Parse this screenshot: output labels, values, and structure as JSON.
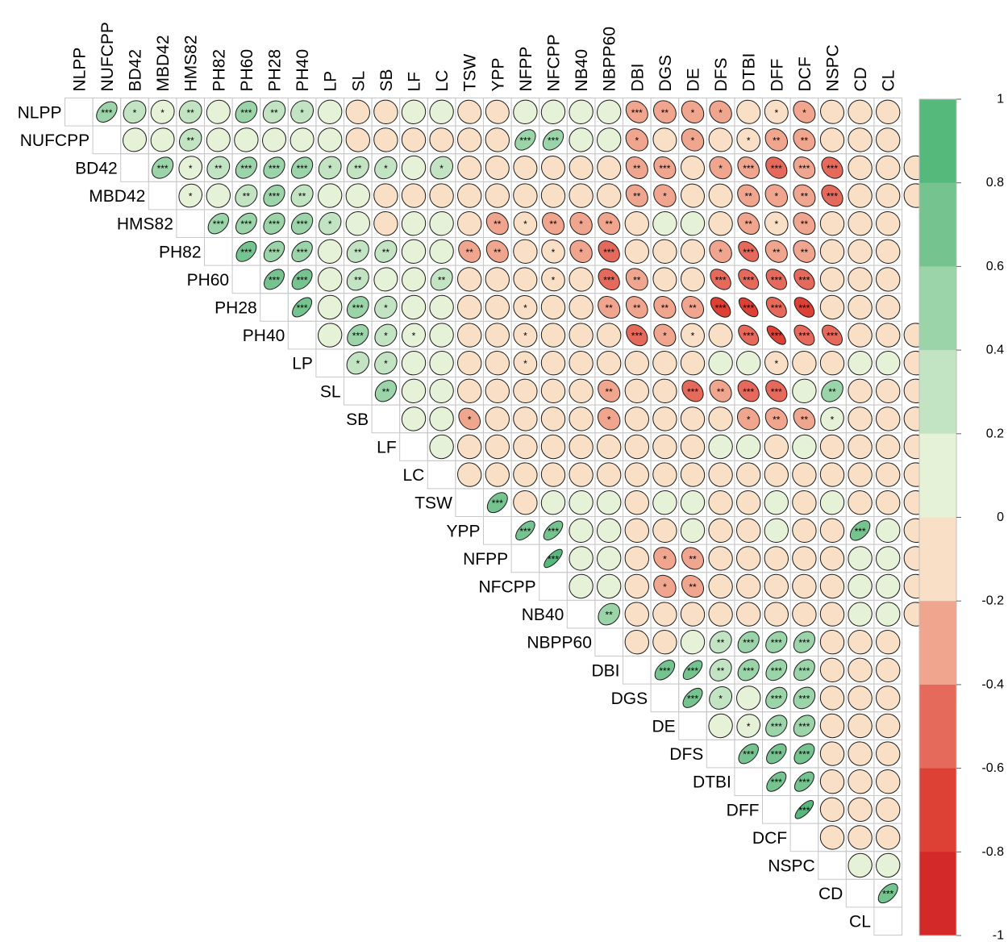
{
  "chart_data": {
    "type": "heatmap",
    "style": "upper-triangle correlogram, ellipse glyphs",
    "variables": [
      "NLPP",
      "NUFCPP",
      "BD42",
      "MBD42",
      "HMS82",
      "PH82",
      "PH60",
      "PH28",
      "PH40",
      "LP",
      "SL",
      "SB",
      "LF",
      "LC",
      "TSW",
      "YPP",
      "NFPP",
      "NFCPP",
      "NB40",
      "NBPP60",
      "DBI",
      "DGS",
      "DE",
      "DFS",
      "DTBI",
      "DFF",
      "DCF",
      "NSPC",
      "CD",
      "CL"
    ],
    "legend": {
      "min": -1,
      "max": 1,
      "ticks": [
        "1",
        "0.8",
        "0.6",
        "0.4",
        "0.2",
        "0",
        "-0.2",
        "-0.4",
        "-0.6",
        "-0.8",
        "-1"
      ],
      "bins": [
        {
          "from": 0.8,
          "to": 1.0,
          "color": "#55b97c"
        },
        {
          "from": 0.6,
          "to": 0.8,
          "color": "#75c48f"
        },
        {
          "from": 0.4,
          "to": 0.6,
          "color": "#9cd4a9"
        },
        {
          "from": 0.2,
          "to": 0.4,
          "color": "#c3e4c3"
        },
        {
          "from": 0.0,
          "to": 0.2,
          "color": "#e6f2d7"
        },
        {
          "from": -0.2,
          "to": 0.0,
          "color": "#f9dfc6"
        },
        {
          "from": -0.4,
          "to": -0.2,
          "color": "#f0a58f"
        },
        {
          "from": -0.6,
          "to": -0.4,
          "color": "#e66a5c"
        },
        {
          "from": -0.8,
          "to": -0.6,
          "color": "#dd4034"
        },
        {
          "from": -1.0,
          "to": -0.8,
          "color": "#d32a29"
        }
      ]
    },
    "cells": [
      {
        "row": "NLPP",
        "values": [
          0.55,
          0.25,
          0.1,
          0.25,
          0.1,
          0.4,
          0.3,
          0.25,
          0.05,
          -0.05,
          -0.05,
          0.05,
          0.05,
          -0.1,
          -0.1,
          0.05,
          0.05,
          0.05,
          0.05,
          -0.35,
          -0.25,
          -0.3,
          -0.3,
          -0.1,
          -0.1,
          -0.35,
          -0.1,
          -0.05,
          -0.05
        ],
        "stars": [
          "***",
          "*",
          "*",
          "**",
          "",
          "***",
          "**",
          "*",
          "",
          "",
          "",
          "",
          "",
          "",
          "",
          "",
          "",
          "",
          "",
          "***",
          "**",
          "*",
          "*",
          "",
          "*",
          "*",
          "",
          "",
          ""
        ]
      },
      {
        "row": "NUFCPP",
        "values": [
          0.1,
          0.1,
          0.3,
          0.1,
          0.05,
          0.1,
          0.1,
          0.05,
          -0.05,
          -0.05,
          -0.05,
          -0.05,
          -0.05,
          -0.05,
          0.55,
          0.55,
          0.05,
          0.05,
          -0.3,
          -0.1,
          -0.3,
          -0.1,
          -0.15,
          -0.3,
          -0.35,
          -0.05,
          -0.05,
          -0.05
        ],
        "stars": [
          "",
          "",
          "**",
          "",
          "",
          "",
          "",
          "",
          "",
          "",
          "",
          "",
          "",
          "",
          "***",
          "***",
          "",
          "",
          "*",
          "",
          "*",
          "",
          "*",
          "**",
          "**",
          "",
          "",
          ""
        ]
      },
      {
        "row": "BD42",
        "values": [
          0.45,
          0.15,
          0.25,
          0.45,
          0.45,
          0.45,
          0.25,
          0.35,
          0.3,
          0.05,
          0.25,
          -0.1,
          -0.1,
          -0.1,
          -0.1,
          -0.1,
          -0.1,
          -0.35,
          -0.35,
          -0.1,
          -0.3,
          -0.4,
          -0.45,
          -0.4,
          -0.45,
          -0.05,
          -0.05,
          -0.05
        ],
        "stars": [
          "***",
          "*",
          "**",
          "***",
          "***",
          "***",
          "*",
          "**",
          "*",
          "",
          "*",
          "",
          "",
          "",
          "",
          "",
          "",
          "**",
          "***",
          "",
          "*",
          "***",
          "***",
          "***",
          "***",
          "",
          "",
          ""
        ]
      },
      {
        "row": "MBD42",
        "values": [
          0.15,
          0.05,
          0.35,
          0.45,
          0.35,
          0.05,
          0.05,
          -0.05,
          -0.05,
          -0.05,
          -0.05,
          -0.05,
          -0.05,
          -0.05,
          -0.05,
          -0.05,
          -0.35,
          -0.3,
          -0.1,
          -0.1,
          -0.35,
          -0.3,
          -0.35,
          -0.45,
          -0.05,
          -0.05,
          -0.05
        ],
        "stars": [
          "*",
          "",
          "**",
          "***",
          "**",
          "",
          "",
          "",
          "",
          "",
          "",
          "",
          "",
          "",
          "",
          "",
          "**",
          "*",
          "",
          "",
          "**",
          "*",
          "**",
          "***",
          "",
          "",
          ""
        ]
      },
      {
        "row": "HMS82",
        "values": [
          0.55,
          0.5,
          0.45,
          0.45,
          0.3,
          0.05,
          -0.05,
          0.05,
          0.05,
          -0.05,
          -0.35,
          -0.15,
          -0.35,
          -0.3,
          -0.35,
          -0.05,
          0.05,
          0.05,
          -0.05,
          -0.4,
          -0.15,
          -0.35,
          -0.05,
          -0.05,
          -0.05
        ],
        "stars": [
          "***",
          "***",
          "***",
          "***",
          "*",
          "",
          "",
          "",
          "",
          "",
          "**",
          "*",
          "**",
          "*",
          "**",
          "",
          "",
          "",
          "",
          "**",
          "*",
          "**",
          "",
          "",
          ""
        ]
      },
      {
        "row": "PH82",
        "values": [
          0.6,
          0.55,
          0.55,
          0.05,
          0.35,
          0.35,
          0.05,
          0.05,
          -0.35,
          -0.35,
          -0.05,
          -0.15,
          -0.3,
          -0.45,
          -0.05,
          -0.05,
          -0.05,
          -0.3,
          -0.6,
          -0.35,
          -0.35,
          -0.05,
          -0.05,
          -0.05
        ],
        "stars": [
          "***",
          "***",
          "***",
          "",
          "**",
          "**",
          "",
          "",
          "**",
          "**",
          "",
          "*",
          "*",
          "***",
          "",
          "",
          "",
          "*",
          "***",
          "**",
          "**",
          "",
          "",
          ""
        ]
      },
      {
        "row": "PH60",
        "values": [
          0.6,
          0.6,
          0.05,
          0.35,
          0.1,
          0.1,
          0.35,
          -0.05,
          -0.05,
          -0.1,
          -0.15,
          -0.05,
          -0.45,
          -0.35,
          -0.1,
          -0.1,
          -0.55,
          -0.6,
          -0.55,
          -0.55,
          -0.05,
          -0.05,
          -0.05
        ],
        "stars": [
          "***",
          "***",
          "",
          "**",
          "",
          "",
          "**",
          "",
          "",
          "",
          "*",
          "",
          "***",
          "**",
          "",
          "",
          "***",
          "***",
          "***",
          "***",
          "",
          "",
          ""
        ]
      },
      {
        "row": "PH28",
        "values": [
          0.7,
          0.05,
          0.4,
          0.3,
          0.05,
          0.05,
          -0.05,
          -0.05,
          -0.1,
          -0.05,
          -0.05,
          -0.35,
          -0.4,
          -0.35,
          -0.35,
          -0.65,
          -0.75,
          -0.6,
          -0.65,
          -0.05,
          -0.05,
          -0.05
        ],
        "stars": [
          "***",
          "",
          "***",
          "*",
          "",
          "",
          "",
          "",
          "*",
          "",
          "",
          "**",
          "**",
          "**",
          "**",
          "***",
          "***",
          "***",
          "***",
          "",
          "",
          ""
        ]
      },
      {
        "row": "PH40",
        "values": [
          0.05,
          0.45,
          0.35,
          0.1,
          0.05,
          -0.05,
          -0.05,
          -0.1,
          -0.05,
          -0.05,
          -0.05,
          -0.45,
          -0.35,
          -0.1,
          -0.1,
          -0.6,
          -0.8,
          -0.6,
          -0.6,
          -0.05,
          -0.05,
          -0.05
        ],
        "stars": [
          "",
          "***",
          "*",
          "*",
          "",
          "",
          "",
          "*",
          "",
          "",
          "",
          "***",
          "*",
          "*",
          "",
          "***",
          "***",
          "***",
          "***",
          "",
          "",
          ""
        ]
      },
      {
        "row": "LP",
        "values": [
          0.3,
          0.3,
          0.05,
          0.05,
          -0.05,
          -0.05,
          -0.15,
          -0.05,
          -0.05,
          -0.05,
          -0.05,
          -0.05,
          -0.05,
          0.05,
          0.05,
          -0.15,
          -0.05,
          -0.05,
          0.05,
          0.05,
          -0.05
        ],
        "stars": [
          "*",
          "*",
          "",
          "",
          "",
          "",
          "*",
          "",
          "",
          "",
          "",
          "",
          "",
          "",
          "",
          "*",
          "",
          "",
          "",
          "",
          ""
        ]
      },
      {
        "row": "SL",
        "values": [
          0.45,
          0.05,
          0.05,
          -0.05,
          -0.05,
          -0.05,
          -0.05,
          -0.05,
          -0.35,
          -0.05,
          -0.05,
          -0.45,
          -0.35,
          -0.45,
          -0.45,
          0.05,
          0.4,
          -0.05,
          -0.05,
          -0.05
        ],
        "stars": [
          "**",
          "",
          "",
          "",
          "",
          "",
          "",
          "",
          "**",
          "",
          "",
          "***",
          "**",
          "***",
          "***",
          "",
          "**",
          "",
          "",
          ""
        ]
      },
      {
        "row": "SB",
        "values": [
          0.05,
          0.05,
          -0.4,
          -0.05,
          -0.05,
          -0.05,
          -0.05,
          -0.3,
          -0.05,
          -0.05,
          -0.05,
          -0.05,
          -0.3,
          -0.35,
          -0.4,
          0.15,
          -0.05,
          -0.05,
          -0.05
        ],
        "stars": [
          "",
          "",
          "*",
          "",
          "",
          "",
          "",
          "*",
          "",
          "",
          "",
          "",
          "*",
          "**",
          "**",
          "*",
          "",
          "",
          ""
        ]
      },
      {
        "row": "LF",
        "values": [
          0.05,
          -0.05,
          -0.05,
          -0.05,
          -0.05,
          -0.05,
          -0.05,
          -0.05,
          -0.05,
          -0.05,
          0.05,
          0.05,
          -0.05,
          0.05,
          -0.05,
          -0.05,
          -0.05,
          -0.05
        ]
      },
      {
        "row": "LC",
        "values": [
          -0.05,
          -0.05,
          -0.05,
          -0.05,
          -0.05,
          -0.05,
          -0.05,
          -0.05,
          -0.05,
          -0.05,
          -0.05,
          -0.05,
          -0.05,
          -0.05,
          -0.05,
          -0.05,
          -0.05
        ]
      },
      {
        "row": "TSW",
        "values": [
          0.6,
          -0.05,
          0.05,
          0.05,
          0.05,
          -0.05,
          0.05,
          0.05,
          -0.05,
          -0.05,
          0.05,
          -0.05,
          0.05,
          -0.05,
          -0.05,
          -0.05
        ],
        "stars": [
          "***",
          "",
          "",
          "",
          "",
          "",
          "",
          "",
          "",
          "",
          "",
          "",
          "",
          "",
          "",
          ""
        ]
      },
      {
        "row": "YPP",
        "values": [
          0.75,
          0.75,
          0.05,
          0.05,
          -0.05,
          -0.05,
          0.05,
          -0.05,
          -0.05,
          0.05,
          -0.05,
          -0.05,
          0.65,
          0.05,
          -0.05
        ],
        "stars": [
          "***",
          "***",
          "",
          "",
          "",
          "",
          "",
          "",
          "",
          "",
          "",
          "",
          "***",
          "",
          ""
        ]
      },
      {
        "row": "NFPP",
        "values": [
          0.85,
          0.05,
          0.05,
          -0.05,
          -0.3,
          -0.35,
          -0.05,
          -0.05,
          -0.05,
          -0.05,
          -0.05,
          0.05,
          0.05,
          -0.05
        ],
        "stars": [
          "***",
          "",
          "",
          "",
          "*",
          "**",
          "",
          "",
          "",
          "",
          "",
          "",
          "",
          ""
        ]
      },
      {
        "row": "NFCPP",
        "values": [
          0.05,
          0.05,
          -0.05,
          -0.3,
          -0.35,
          -0.05,
          -0.05,
          -0.05,
          -0.05,
          -0.05,
          0.05,
          0.05,
          -0.05
        ],
        "stars": [
          "",
          "",
          "",
          "*",
          "**",
          "",
          "",
          "",
          "",
          "",
          "",
          "",
          ""
        ]
      },
      {
        "row": "NB40",
        "values": [
          0.4,
          -0.05,
          -0.05,
          -0.05,
          -0.05,
          -0.05,
          -0.05,
          -0.05,
          -0.05,
          0.05,
          0.05,
          -0.05
        ],
        "stars": [
          "**",
          "",
          "",
          "",
          "",
          "",
          "",
          "",
          "",
          "",
          "",
          ""
        ]
      },
      {
        "row": "NBPP60",
        "values": [
          -0.05,
          -0.05,
          0.05,
          0.35,
          0.45,
          0.45,
          0.45,
          -0.05,
          -0.05,
          -0.05
        ],
        "stars": [
          "",
          "",
          "",
          "**",
          "***",
          "***",
          "***",
          "",
          "",
          ""
        ]
      },
      {
        "row": "DBI",
        "values": [
          0.65,
          0.75,
          0.35,
          0.45,
          0.5,
          0.5,
          -0.05,
          -0.05,
          -0.05
        ],
        "stars": [
          "***",
          "***",
          "**",
          "***",
          "***",
          "***",
          "",
          "",
          ""
        ]
      },
      {
        "row": "DGS",
        "values": [
          0.7,
          0.25,
          0.05,
          0.45,
          0.4,
          -0.05,
          -0.05,
          -0.05
        ],
        "stars": [
          "***",
          "*",
          "",
          "***",
          "***",
          "",
          "",
          ""
        ]
      },
      {
        "row": "DE",
        "values": [
          0.05,
          0.15,
          0.45,
          0.45,
          -0.05,
          -0.05,
          -0.05
        ],
        "stars": [
          "",
          "*",
          "***",
          "***",
          "",
          "",
          ""
        ]
      },
      {
        "row": "DFS",
        "values": [
          0.65,
          0.65,
          0.6,
          -0.05,
          -0.05,
          -0.05
        ],
        "stars": [
          "***",
          "***",
          "***",
          "",
          "",
          ""
        ]
      },
      {
        "row": "DTBI",
        "values": [
          0.7,
          0.7,
          -0.05,
          -0.05,
          -0.05
        ],
        "stars": [
          "***",
          "***",
          "",
          "",
          ""
        ]
      },
      {
        "row": "DFF",
        "values": [
          0.85,
          -0.05,
          -0.05,
          -0.05
        ],
        "stars": [
          "***",
          "",
          "",
          ""
        ]
      },
      {
        "row": "DCF",
        "values": [
          -0.05,
          -0.05,
          -0.05
        ]
      },
      {
        "row": "NSPC",
        "values": [
          0.05,
          0.05
        ]
      },
      {
        "row": "CD",
        "values": [
          0.7
        ],
        "stars": [
          "***"
        ]
      }
    ]
  }
}
